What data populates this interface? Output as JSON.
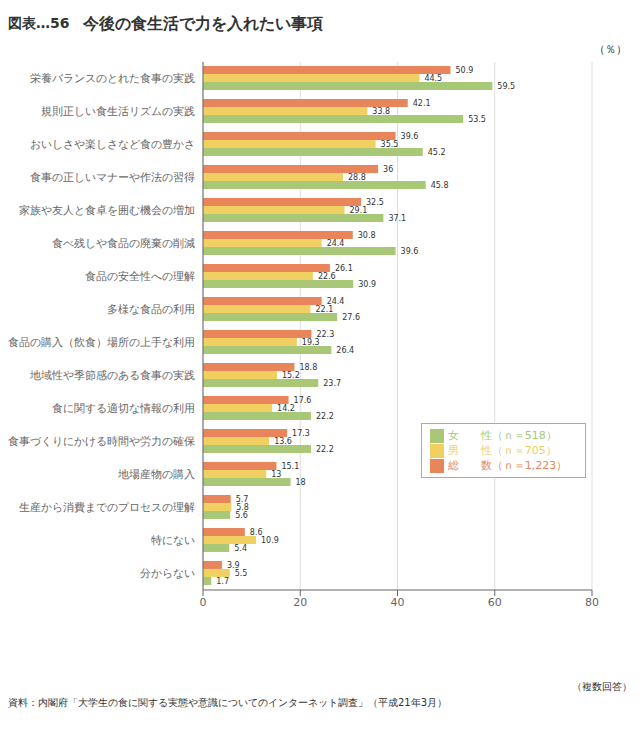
{
  "chart_data": {
    "type": "bar",
    "orientation": "horizontal",
    "title": "今後の食生活で力を入れたい事項",
    "annotations": [
      "図表…56",
      "（％）",
      "（複数回答）",
      "資料：内閣府「大学生の食に関する実態や意識についてのインターネット調査」（平成21年3月）"
    ],
    "categories": [
      "栄養バランスのとれた食事の実践",
      "規則正しい食生活リズムの実践",
      "おいしさや楽しさなど食の豊かさ",
      "食事の正しいマナーや作法の習得",
      "家族や友人と食卓を囲む機会の増加",
      "食べ残しや食品の廃棄の削減",
      "食品の安全性への理解",
      "多様な食品の利用",
      "食品の購入（飲食）場所の上手な利用",
      "地域性や季節感のある食事の実践",
      "食に関する適切な情報の利用",
      "食事づくりにかける時間や労力の確保",
      "地場産物の購入",
      "生産から消費までのプロセスの理解",
      "特にない",
      "分からない"
    ],
    "series": [
      {
        "name": "総　　数（ｎ＝1,223）",
        "color": "#E8855A",
        "values": [
          50.9,
          42.1,
          39.6,
          36.0,
          32.5,
          30.8,
          26.1,
          24.4,
          22.3,
          18.8,
          17.6,
          17.3,
          15.1,
          5.7,
          8.6,
          3.9
        ]
      },
      {
        "name": "男　　性（ｎ＝705）",
        "color": "#F0D060",
        "values": [
          44.5,
          33.8,
          35.5,
          28.8,
          29.1,
          24.4,
          22.6,
          22.1,
          19.3,
          15.2,
          14.2,
          13.6,
          13.0,
          5.8,
          10.9,
          5.5
        ]
      },
      {
        "name": "女　　性（ｎ＝518）",
        "color": "#A8C878",
        "values": [
          59.5,
          53.5,
          45.2,
          45.8,
          37.1,
          39.6,
          30.9,
          27.6,
          26.4,
          23.7,
          22.2,
          22.2,
          18.0,
          5.6,
          5.4,
          1.7
        ]
      }
    ],
    "xlim": [
      0,
      80
    ],
    "xticks": [
      0,
      20,
      40,
      60,
      80
    ],
    "grid": true,
    "legend": "lower right",
    "data_labels": true
  }
}
